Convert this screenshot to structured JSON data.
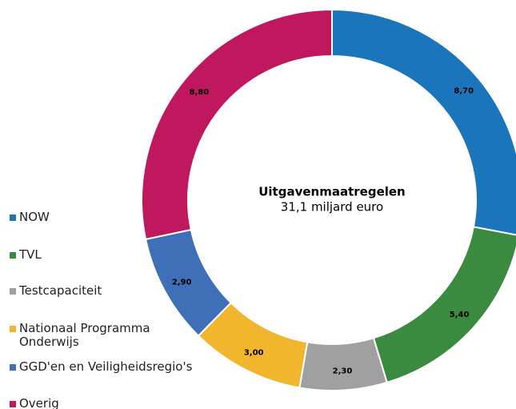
{
  "chart_data": {
    "type": "donut",
    "center_title": "Uitgavenmaatregelen",
    "center_subtitle": "31,1 miljard euro",
    "series": [
      {
        "name": "NOW",
        "color": "#1b75bb",
        "value": 8.7,
        "value_label": "8,70"
      },
      {
        "name": "TVL",
        "color": "#3a8a3f",
        "value": 5.4,
        "value_label": "5,40"
      },
      {
        "name": "Testcapaciteit",
        "color": "#a0a0a0",
        "value": 2.3,
        "value_label": "2,30"
      },
      {
        "name": "Nationaal Programma Onderwijs",
        "color": "#f2b52e",
        "value": 3.0,
        "value_label": "3,00"
      },
      {
        "name": "GGD'en en Veiligheidsregio's",
        "color": "#3f6fb6",
        "value": 2.9,
        "value_label": "2,90"
      },
      {
        "name": "Overig",
        "color": "#c0185e",
        "value": 8.8,
        "value_label": "8,80"
      }
    ],
    "legend": "left"
  }
}
